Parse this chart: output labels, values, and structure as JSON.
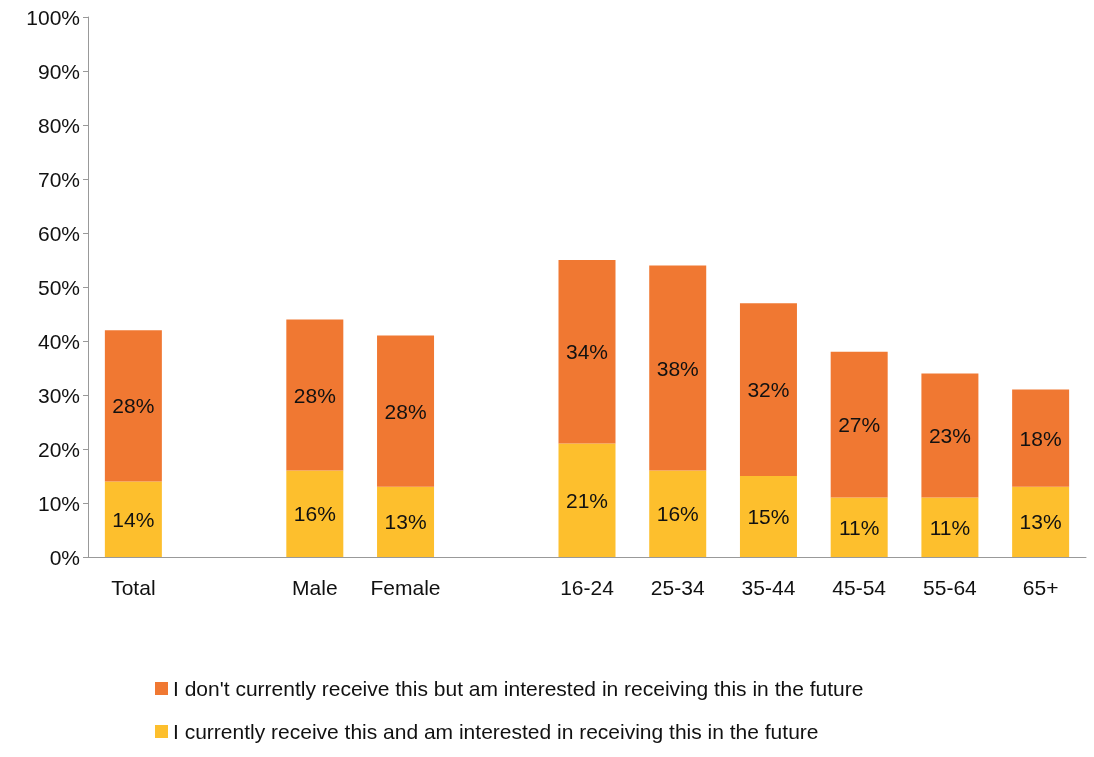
{
  "chart_data": {
    "type": "bar",
    "stacked": true,
    "categories": [
      "Total",
      null,
      "Male",
      "Female",
      null,
      "16-24",
      "25-34",
      "35-44",
      "45-54",
      "55-64",
      "65+"
    ],
    "series": [
      {
        "name": "I currently receive this and am interested in receiving this in the future",
        "color": "#fdbf2d",
        "values": [
          14,
          null,
          16,
          13,
          null,
          21,
          16,
          15,
          11,
          11,
          13
        ],
        "value_labels": [
          "14%",
          null,
          "16%",
          "13%",
          null,
          "21%",
          "16%",
          "15%",
          "11%",
          "11%",
          "13%"
        ]
      },
      {
        "name": "I don't currently receive this but am interested in receiving this in the future",
        "color": "#f07832",
        "values": [
          28,
          null,
          28,
          28,
          null,
          34,
          38,
          32,
          27,
          23,
          18
        ],
        "value_labels": [
          "28%",
          null,
          "28%",
          "28%",
          null,
          "34%",
          "38%",
          "32%",
          "27%",
          "23%",
          "18%"
        ]
      }
    ],
    "ylim": [
      0,
      100
    ],
    "yticks": [
      {
        "value": 0,
        "label": "0%"
      },
      {
        "value": 10,
        "label": "10%"
      },
      {
        "value": 20,
        "label": "20%"
      },
      {
        "value": 30,
        "label": "30%"
      },
      {
        "value": 40,
        "label": "40%"
      },
      {
        "value": 50,
        "label": "50%"
      },
      {
        "value": 60,
        "label": "60%"
      },
      {
        "value": 70,
        "label": "70%"
      },
      {
        "value": 80,
        "label": "80%"
      },
      {
        "value": 90,
        "label": "90%"
      },
      {
        "value": 100,
        "label": "100%"
      }
    ],
    "grid": false,
    "legend": "bottom"
  }
}
